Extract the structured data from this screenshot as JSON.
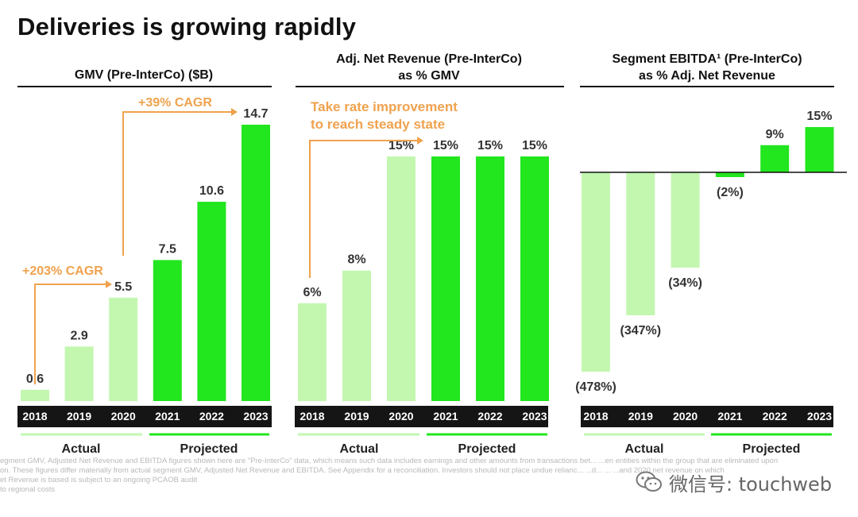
{
  "page": {
    "title": "Deliveries is growing rapidly"
  },
  "colors": {
    "actual": "#c3f7b0",
    "projected": "#22e61e",
    "annotation": "#f0a24e",
    "axis_bar": "#151515",
    "axis_text": "#ffffff",
    "label_text": "#333333"
  },
  "legend": {
    "actual_label": "Actual",
    "projected_label": "Projected"
  },
  "chart_data": [
    {
      "type": "bar",
      "id": "gmv",
      "title_lines": [
        "GMV (Pre-InterCo) ($B)"
      ],
      "categories": [
        "2018",
        "2019",
        "2020",
        "2021",
        "2022",
        "2023"
      ],
      "values": [
        0.6,
        2.9,
        5.5,
        7.5,
        10.6,
        14.7
      ],
      "value_labels": [
        "0.6",
        "2.9",
        "5.5",
        "7.5",
        "10.6",
        "14.7"
      ],
      "kinds": [
        "actual",
        "actual",
        "actual",
        "projected",
        "projected",
        "projected"
      ],
      "ylim": [
        0,
        14.7
      ],
      "annotations": [
        "+203% CAGR",
        "+39% CAGR"
      ],
      "xlabel": "",
      "ylabel": ""
    },
    {
      "type": "bar",
      "id": "net_revenue",
      "title_lines": [
        "Adj. Net Revenue (Pre-InterCo)",
        "as % GMV"
      ],
      "categories": [
        "2018",
        "2019",
        "2020",
        "2021",
        "2022",
        "2023"
      ],
      "values": [
        6,
        8,
        15,
        15,
        15,
        15
      ],
      "value_labels": [
        "6%",
        "8%",
        "15%",
        "15%",
        "15%",
        "15%"
      ],
      "kinds": [
        "actual",
        "actual",
        "actual",
        "projected",
        "projected",
        "projected"
      ],
      "ylim": [
        0,
        15
      ],
      "annotations": [
        "Take rate improvement",
        "to reach steady state"
      ],
      "xlabel": "",
      "ylabel": ""
    },
    {
      "type": "bar",
      "id": "ebitda",
      "title_lines": [
        "Segment EBITDA¹ (Pre-InterCo)",
        "as % Adj. Net Revenue"
      ],
      "categories": [
        "2018",
        "2019",
        "2020",
        "2021",
        "2022",
        "2023"
      ],
      "values": [
        -478,
        -347,
        -34,
        -2,
        9,
        15
      ],
      "value_labels": [
        "(478%)",
        "(347%)",
        "(34%)",
        "(2%)",
        "9%",
        "15%"
      ],
      "kinds": [
        "actual",
        "actual",
        "actual",
        "projected",
        "projected",
        "projected"
      ],
      "note": "y-axis is not drawn to scale in the original; bars use presentation heights",
      "xlabel": "",
      "ylabel": ""
    }
  ],
  "footnotes": [
    "egment GMV, Adjusted Net Revenue and EBITDA figures shown here are \"Pre-InterCo\" data, which means such data includes earnings and other amounts from transactions bet... ...en entities within the group that are eliminated upon",
    "on. These figures differ materially from actual segment GMV, Adjusted Net Revenue and EBITDA. See Appendix for a reconciliation. Investors should not place undue relianc... ...d... ... ...and 2020 net revenue on which",
    "et Revenue is based is subject to an ongoing PCAOB audit",
    "to regional costs"
  ],
  "watermark": {
    "text": "微信号: touchweb",
    "icon": "wechat-icon"
  }
}
